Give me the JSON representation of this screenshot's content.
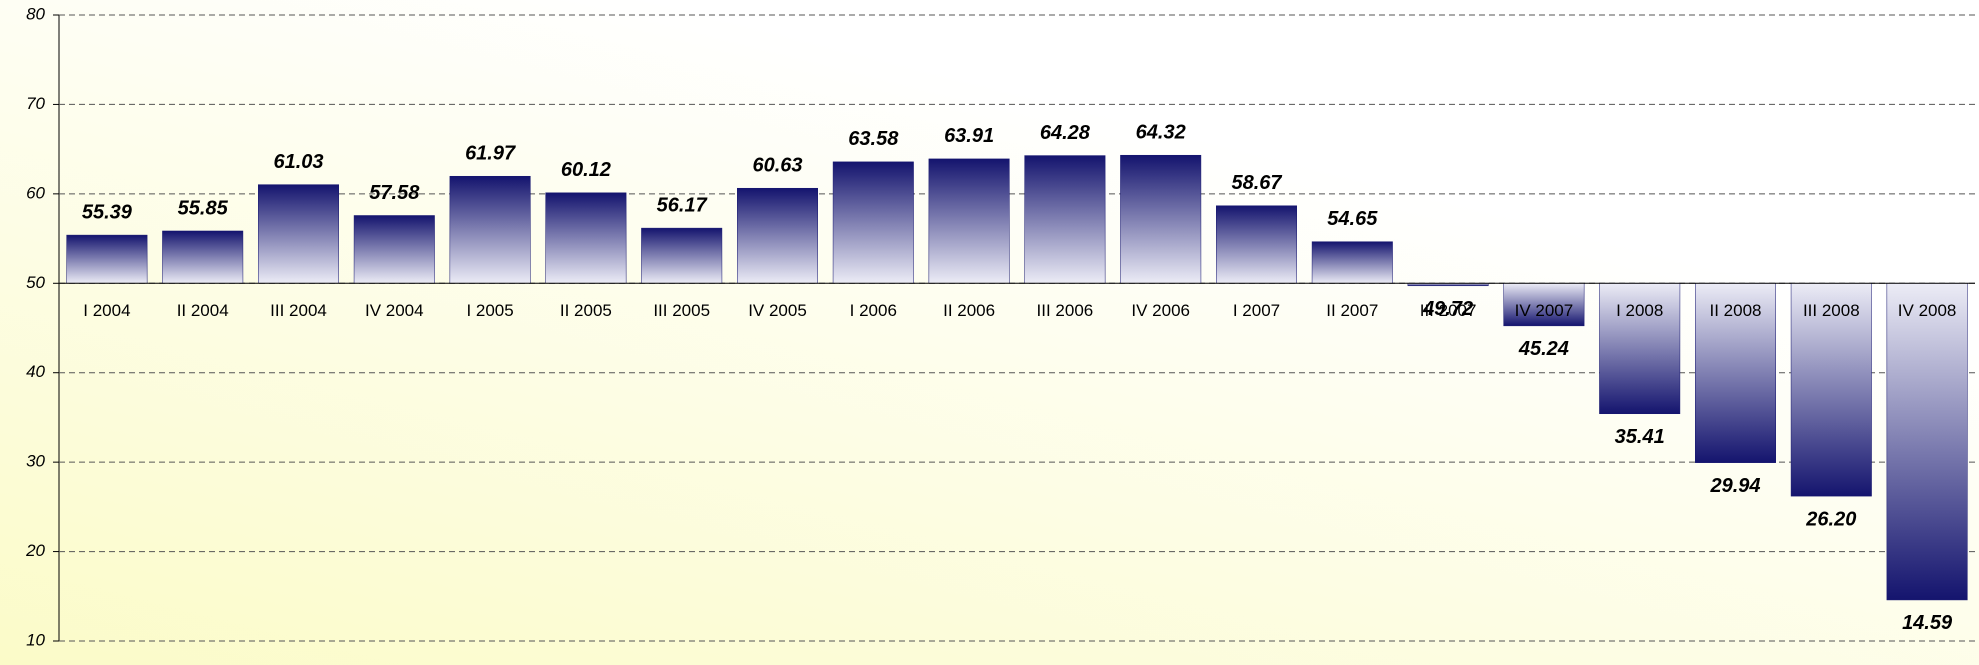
{
  "chart_data": {
    "type": "bar",
    "categories": [
      "I 2004",
      "II 2004",
      "III 2004",
      "IV 2004",
      "I 2005",
      "II 2005",
      "III 2005",
      "IV 2005",
      "I 2006",
      "II 2006",
      "III 2006",
      "IV 2006",
      "I 2007",
      "II 2007",
      "III 2007",
      "IV 2007",
      "I 2008",
      "II 2008",
      "III 2008",
      "IV 2008"
    ],
    "values": [
      55.39,
      55.85,
      61.03,
      57.58,
      61.97,
      60.12,
      56.17,
      60.63,
      63.58,
      63.91,
      64.28,
      64.32,
      58.67,
      54.65,
      49.72,
      45.24,
      35.41,
      29.94,
      26.2,
      14.59
    ],
    "value_labels": [
      "55.39",
      "55.85",
      "61.03",
      "57.58",
      "61.97",
      "60.12",
      "56.17",
      "60.63",
      "63.58",
      "63.91",
      "64.28",
      "64.32",
      "58.67",
      "54.65",
      "49.72",
      "45.24",
      "35.41",
      "29.94",
      "26.20",
      "14.59"
    ],
    "color": "#14146e",
    "x_axis_crosses": 50,
    "ylim": [
      10,
      80
    ],
    "yticks": [
      10,
      20,
      30,
      40,
      50,
      60,
      70,
      80
    ],
    "grid": true
  }
}
